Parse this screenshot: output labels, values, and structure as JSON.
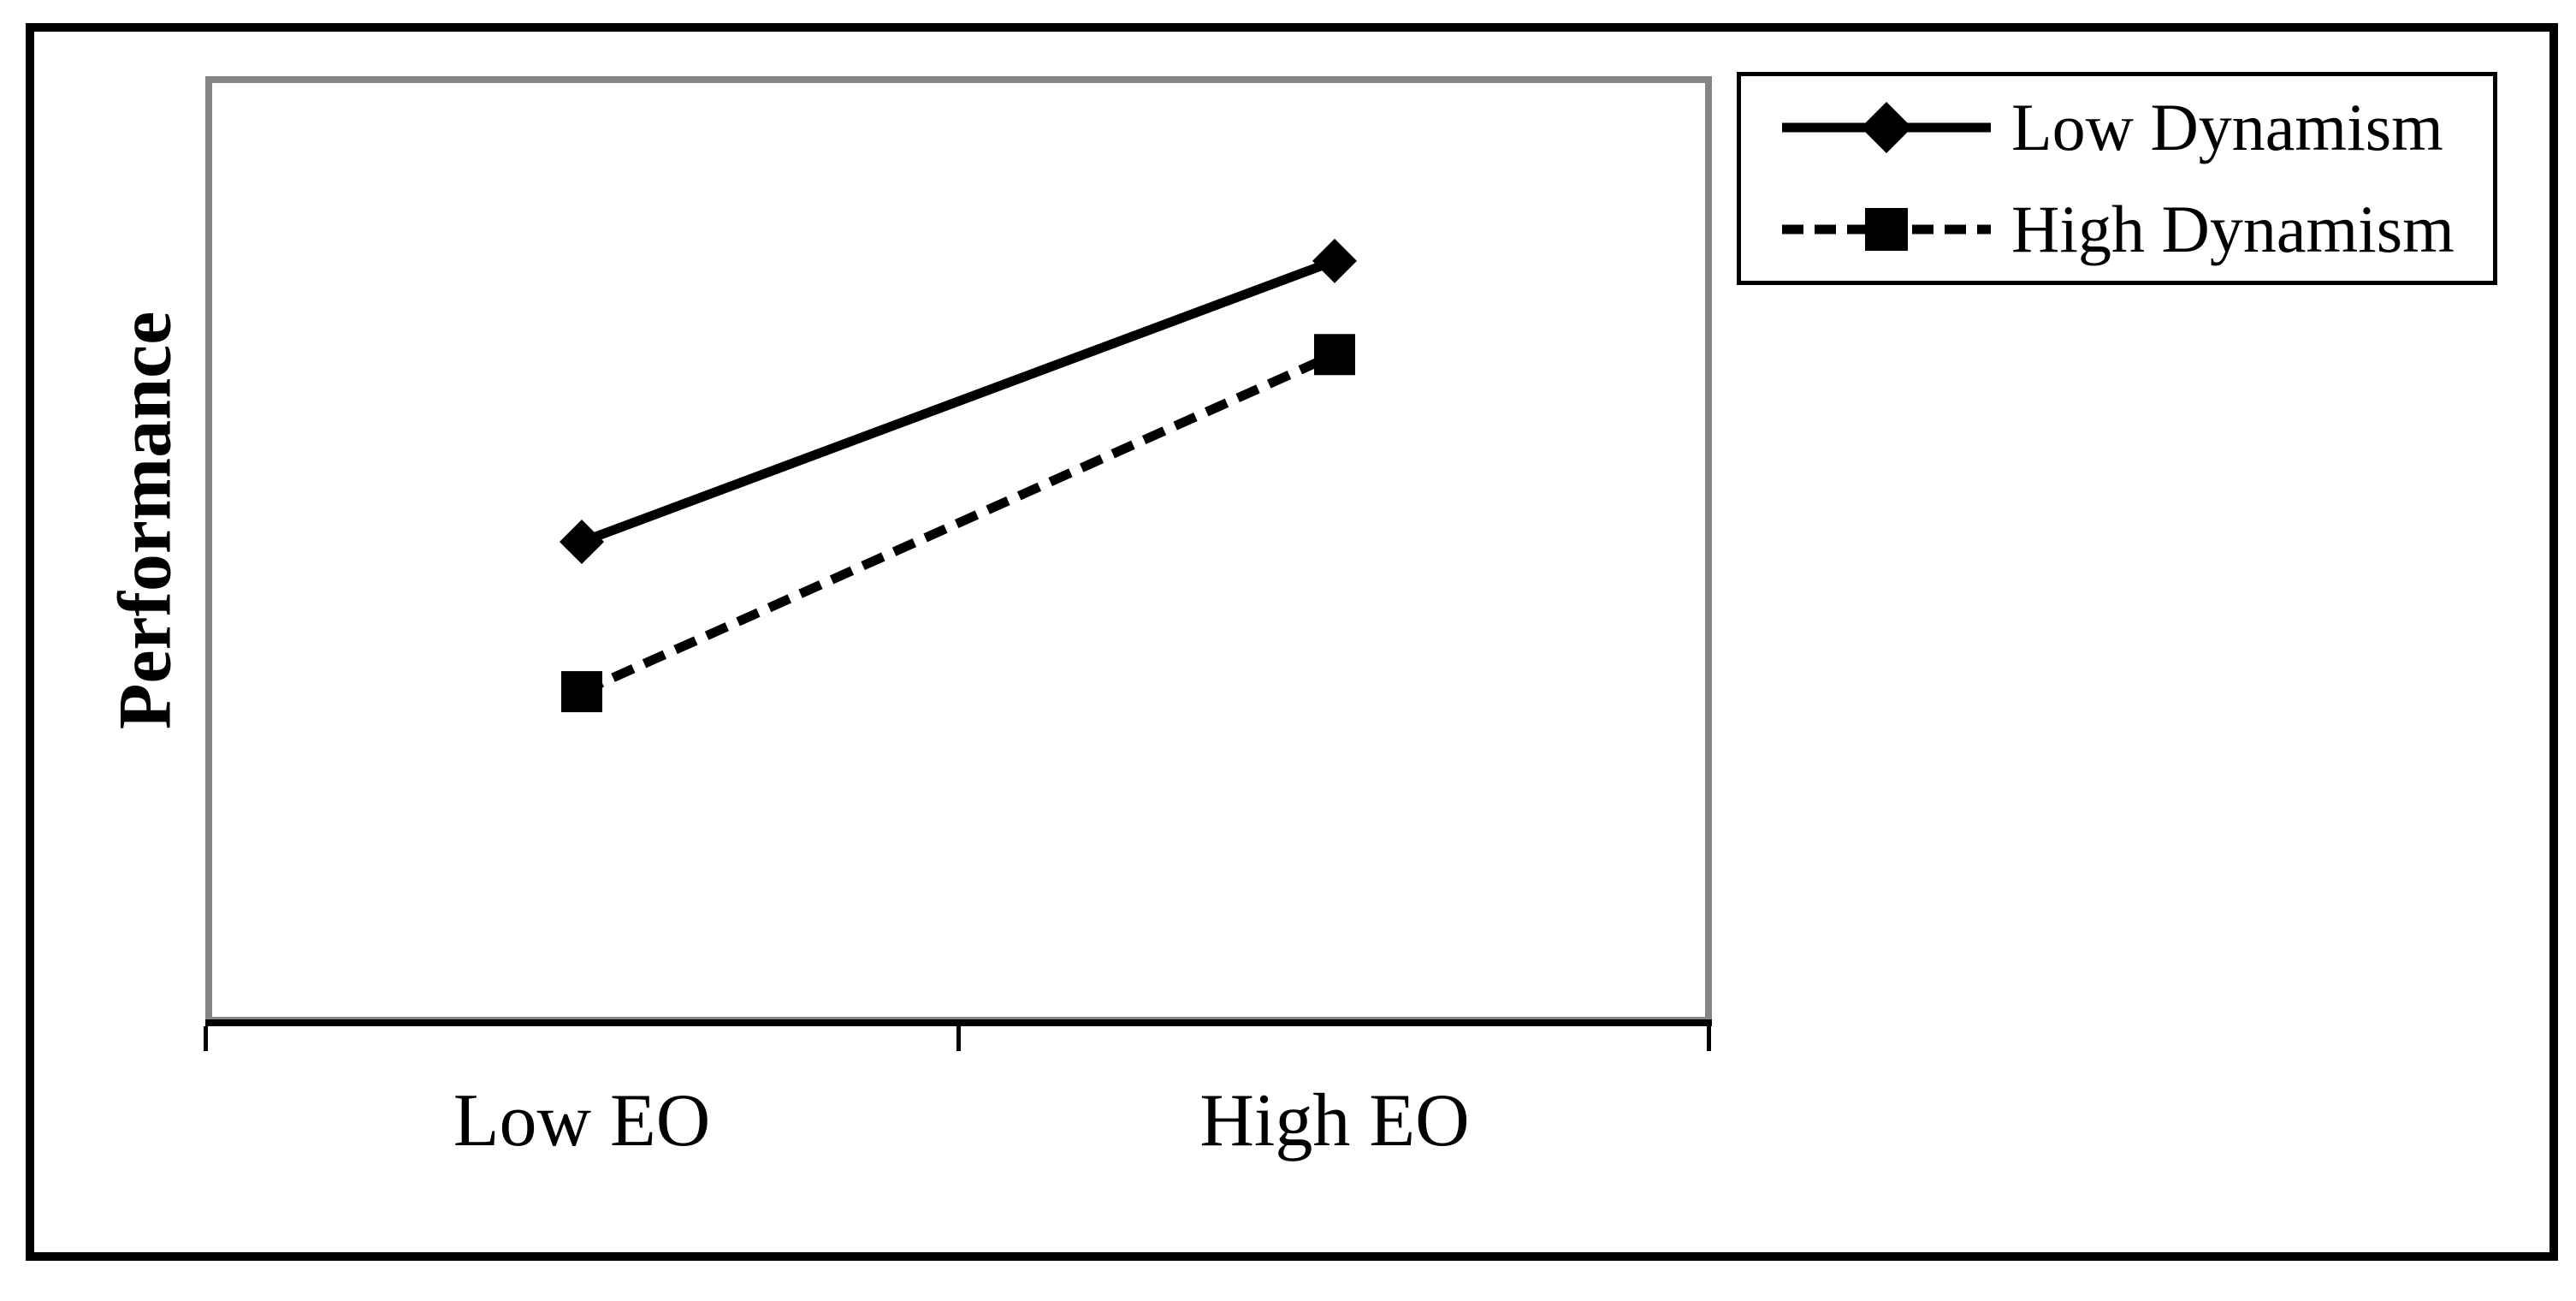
{
  "figure": {
    "y_axis_label": "Performance",
    "x_axis_labels": [
      "Low EO",
      "High EO"
    ],
    "legend": {
      "items": [
        {
          "label": "Low Dynamism",
          "line_style": "solid",
          "marker": "diamond"
        },
        {
          "label": "High Dynamism",
          "line_style": "dashed",
          "marker": "square"
        }
      ]
    },
    "colors": {
      "series": "#000000",
      "plot_border": "#848484",
      "outer_border": "#000000",
      "background": "#ffffff"
    }
  },
  "chart_data": {
    "type": "line",
    "categories": [
      "Low EO",
      "High EO"
    ],
    "series": [
      {
        "name": "Low Dynamism",
        "values": [
          5.1,
          8.1
        ],
        "line_style": "solid",
        "marker": "diamond",
        "color": "#000000"
      },
      {
        "name": "High Dynamism",
        "values": [
          3.5,
          7.1
        ],
        "line_style": "dashed",
        "marker": "square",
        "color": "#000000"
      }
    ],
    "title": "",
    "xlabel": "",
    "ylabel": "Performance",
    "ylim": [
      0,
      10
    ],
    "y_axis_numeric_labels_visible": false,
    "grid": false,
    "legend_position": "top-right-outside-plot"
  }
}
